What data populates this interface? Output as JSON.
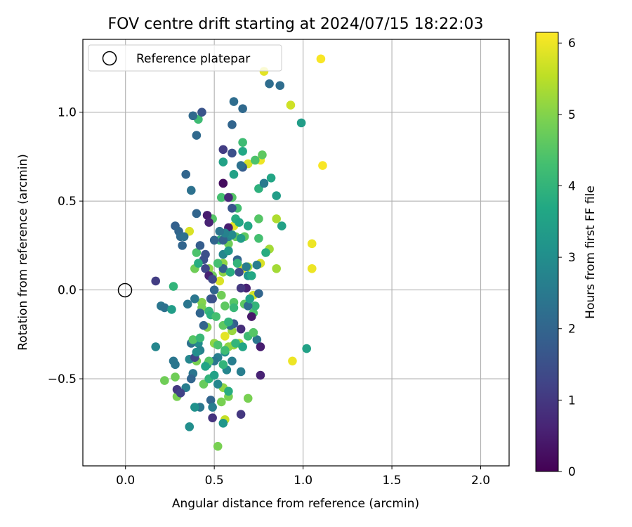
{
  "chart_data": {
    "type": "scatter",
    "title": "FOV centre drift starting at 2024/07/15 18:22:03",
    "xlabel": "Angular distance from reference (arcmin)",
    "ylabel": "Rotation from reference (arcmin)",
    "xlim": [
      -0.24,
      2.16
    ],
    "ylim": [
      -0.99,
      1.41
    ],
    "xticks": [
      0.0,
      0.5,
      1.0,
      1.5,
      2.0
    ],
    "xtick_labels": [
      "0.0",
      "0.5",
      "1.0",
      "1.5",
      "2.0"
    ],
    "yticks": [
      -0.5,
      0.0,
      0.5,
      1.0
    ],
    "ytick_labels": [
      "−0.5",
      "0.0",
      "0.5",
      "1.0"
    ],
    "grid": true,
    "legend": {
      "placement": "top-left",
      "entries": [
        "Reference platepar"
      ]
    },
    "reference_point": {
      "x": 0.0,
      "y": 0.0
    },
    "colorbar": {
      "label": "Hours from first FF file",
      "colormap": "viridis",
      "range": [
        0,
        6.15
      ],
      "ticks": [
        0,
        1,
        2,
        3,
        4,
        5,
        6
      ],
      "tick_labels": [
        "0",
        "1",
        "2",
        "3",
        "4",
        "5",
        "6"
      ]
    },
    "points": [
      [
        1.1,
        1.3,
        6.1
      ],
      [
        0.78,
        1.23,
        5.9
      ],
      [
        0.93,
        1.04,
        5.7
      ],
      [
        1.11,
        0.7,
        6.1
      ],
      [
        0.76,
        0.73,
        6.0
      ],
      [
        0.69,
        0.71,
        5.8
      ],
      [
        1.05,
        0.26,
        6.0
      ],
      [
        1.05,
        0.12,
        6.0
      ],
      [
        0.94,
        -0.4,
        6.0
      ],
      [
        0.61,
        0.36,
        5.9
      ],
      [
        0.66,
        0.12,
        5.9
      ],
      [
        0.53,
        0.05,
        5.8
      ],
      [
        0.56,
        -0.26,
        5.9
      ],
      [
        0.36,
        0.33,
        5.8
      ],
      [
        0.72,
        -0.03,
        5.7
      ],
      [
        0.76,
        0.15,
        5.8
      ],
      [
        0.56,
        -0.73,
        5.6
      ],
      [
        0.85,
        0.4,
        5.4
      ],
      [
        0.81,
        0.23,
        5.3
      ],
      [
        0.85,
        0.12,
        5.3
      ],
      [
        0.69,
        0.13,
        5.3
      ],
      [
        0.64,
        -0.3,
        5.3
      ],
      [
        0.61,
        -0.31,
        5.2
      ],
      [
        0.6,
        -0.23,
        5.2
      ],
      [
        0.58,
        -0.32,
        5.1
      ],
      [
        0.55,
        -0.55,
        5.1
      ],
      [
        0.52,
        -0.88,
        4.9
      ],
      [
        0.54,
        -0.63,
        4.9
      ],
      [
        0.69,
        -0.61,
        4.9
      ],
      [
        0.58,
        -0.6,
        4.9
      ],
      [
        0.4,
        -0.4,
        4.9
      ],
      [
        0.29,
        -0.6,
        4.9
      ],
      [
        0.28,
        -0.49,
        4.8
      ],
      [
        0.22,
        -0.51,
        4.8
      ],
      [
        0.5,
        -0.3,
        5.1
      ],
      [
        0.46,
        -0.21,
        5.0
      ],
      [
        0.43,
        -0.07,
        5.0
      ],
      [
        0.47,
        0.12,
        5.1
      ],
      [
        0.39,
        0.12,
        4.8
      ],
      [
        0.43,
        -0.1,
        4.9
      ],
      [
        0.49,
        0.08,
        4.8
      ],
      [
        0.55,
        0.1,
        5.1
      ],
      [
        0.55,
        0.15,
        5.1
      ],
      [
        0.58,
        0.26,
        4.8
      ],
      [
        0.62,
        0.3,
        4.7
      ],
      [
        0.67,
        0.3,
        4.6
      ],
      [
        0.75,
        0.29,
        4.3
      ],
      [
        0.75,
        0.4,
        4.5
      ],
      [
        0.77,
        0.76,
        4.6
      ],
      [
        0.73,
        0.73,
        4.4
      ],
      [
        0.66,
        0.83,
        4.2
      ],
      [
        0.66,
        0.78,
        3.7
      ],
      [
        0.6,
        0.52,
        4.5
      ],
      [
        0.63,
        0.46,
        4.3
      ],
      [
        0.54,
        0.52,
        4.3
      ],
      [
        0.56,
        0.29,
        4.2
      ],
      [
        0.53,
        0.28,
        4.0
      ],
      [
        0.49,
        0.4,
        4.5
      ],
      [
        0.4,
        0.21,
        4.4
      ],
      [
        0.41,
        0.96,
        4.2
      ],
      [
        0.54,
        -0.03,
        4.8
      ],
      [
        0.56,
        -0.09,
        4.6
      ],
      [
        0.61,
        -0.07,
        4.5
      ],
      [
        0.67,
        -0.08,
        4.6
      ],
      [
        0.72,
        -0.13,
        4.4
      ],
      [
        0.73,
        -0.09,
        4.0
      ],
      [
        0.72,
        -0.24,
        4.1
      ],
      [
        0.79,
        0.21,
        3.8
      ],
      [
        0.75,
        0.57,
        3.9
      ],
      [
        0.82,
        0.63,
        3.6
      ],
      [
        0.85,
        0.53,
        3.4
      ],
      [
        0.88,
        0.36,
        3.5
      ],
      [
        0.99,
        0.94,
        3.4
      ],
      [
        1.02,
        -0.33,
        3.5
      ],
      [
        0.78,
        0.6,
        2.5
      ],
      [
        0.81,
        1.16,
        2.2
      ],
      [
        0.87,
        1.15,
        2.2
      ],
      [
        0.61,
        1.06,
        2.2
      ],
      [
        0.66,
        1.02,
        2.1
      ],
      [
        0.6,
        0.93,
        2.0
      ],
      [
        0.43,
        1.0,
        1.6
      ],
      [
        0.38,
        0.98,
        2.1
      ],
      [
        0.4,
        0.87,
        2.1
      ],
      [
        0.34,
        0.65,
        2.0
      ],
      [
        0.37,
        0.56,
        2.3
      ],
      [
        0.4,
        0.43,
        2.0
      ],
      [
        0.28,
        0.36,
        1.9
      ],
      [
        0.3,
        0.33,
        2.0
      ],
      [
        0.31,
        0.3,
        2.1
      ],
      [
        0.33,
        0.3,
        2.3
      ],
      [
        0.32,
        0.25,
        2.0
      ],
      [
        0.42,
        0.25,
        1.8
      ],
      [
        0.55,
        0.79,
        1.1
      ],
      [
        0.6,
        0.77,
        1.5
      ],
      [
        0.66,
        0.69,
        1.8
      ],
      [
        0.65,
        0.7,
        2.3
      ],
      [
        0.61,
        0.65,
        3.5
      ],
      [
        0.55,
        0.72,
        3.5
      ],
      [
        0.55,
        0.6,
        0.2
      ],
      [
        0.58,
        0.52,
        0.7
      ],
      [
        0.6,
        0.46,
        1.6
      ],
      [
        0.58,
        0.35,
        0.5
      ],
      [
        0.58,
        0.3,
        2.7
      ],
      [
        0.55,
        0.28,
        1.9
      ],
      [
        0.46,
        0.42,
        0.5
      ],
      [
        0.47,
        0.38,
        0.6
      ],
      [
        0.44,
        0.17,
        1.5
      ],
      [
        0.45,
        0.12,
        1.3
      ],
      [
        0.47,
        0.08,
        0.6
      ],
      [
        0.49,
        0.06,
        1.3
      ],
      [
        0.55,
        0.2,
        2.8
      ],
      [
        0.55,
        0.12,
        1.9
      ],
      [
        0.63,
        0.17,
        2.0
      ],
      [
        0.64,
        0.1,
        1.4
      ],
      [
        0.68,
        0.13,
        2.6
      ],
      [
        0.69,
        0.08,
        3.2
      ],
      [
        0.74,
        0.14,
        2.6
      ],
      [
        0.68,
        0.01,
        0.6
      ],
      [
        0.65,
        0.01,
        1.0
      ],
      [
        0.71,
        -0.15,
        0.4
      ],
      [
        0.75,
        -0.02,
        2.0
      ],
      [
        0.69,
        -0.09,
        2.2
      ],
      [
        0.17,
        0.05,
        1.1
      ],
      [
        0.2,
        -0.09,
        2.4
      ],
      [
        0.22,
        -0.1,
        2.3
      ],
      [
        0.26,
        -0.11,
        3.4
      ],
      [
        0.27,
        0.02,
        4.0
      ],
      [
        0.35,
        -0.08,
        2.4
      ],
      [
        0.39,
        -0.05,
        2.4
      ],
      [
        0.42,
        -0.13,
        2.0
      ],
      [
        0.44,
        -0.2,
        2.0
      ],
      [
        0.48,
        -0.05,
        1.8
      ],
      [
        0.5,
        0.0,
        2.0
      ],
      [
        0.49,
        -0.05,
        1.5
      ],
      [
        0.61,
        -0.19,
        1.8
      ],
      [
        0.65,
        -0.22,
        0.8
      ],
      [
        0.59,
        -0.2,
        2.2
      ],
      [
        0.74,
        -0.28,
        2.4
      ],
      [
        0.76,
        -0.32,
        0.5
      ],
      [
        0.76,
        -0.48,
        0.6
      ],
      [
        0.65,
        -0.46,
        2.6
      ],
      [
        0.6,
        -0.4,
        2.6
      ],
      [
        0.57,
        -0.45,
        2.8
      ],
      [
        0.56,
        -0.35,
        3.0
      ],
      [
        0.52,
        -0.38,
        2.6
      ],
      [
        0.5,
        -0.4,
        2.4
      ],
      [
        0.46,
        -0.42,
        3.5
      ],
      [
        0.41,
        -0.3,
        3.0
      ],
      [
        0.42,
        -0.34,
        2.7
      ],
      [
        0.37,
        -0.3,
        2.3
      ],
      [
        0.36,
        -0.39,
        2.8
      ],
      [
        0.38,
        -0.47,
        2.4
      ],
      [
        0.37,
        -0.5,
        2.0
      ],
      [
        0.34,
        -0.55,
        2.6
      ],
      [
        0.28,
        -0.42,
        2.4
      ],
      [
        0.27,
        -0.4,
        2.4
      ],
      [
        0.17,
        -0.32,
        2.8
      ],
      [
        0.48,
        -0.62,
        2.0
      ],
      [
        0.49,
        -0.66,
        2.6
      ],
      [
        0.42,
        -0.66,
        2.4
      ],
      [
        0.39,
        -0.66,
        3.1
      ],
      [
        0.36,
        -0.77,
        3.0
      ],
      [
        0.49,
        -0.72,
        0.9
      ],
      [
        0.52,
        -0.53,
        2.8
      ],
      [
        0.55,
        -0.75,
        3.2
      ],
      [
        0.29,
        -0.56,
        1.0
      ],
      [
        0.65,
        -0.7,
        1.0
      ],
      [
        0.31,
        -0.58,
        1.2
      ],
      [
        0.39,
        -0.38,
        1.3
      ],
      [
        0.44,
        -0.53,
        4.7
      ],
      [
        0.47,
        -0.5,
        4.0
      ],
      [
        0.5,
        -0.48,
        3.5
      ],
      [
        0.58,
        -0.57,
        3.8
      ],
      [
        0.55,
        -0.42,
        4.0
      ],
      [
        0.47,
        -0.4,
        4.5
      ],
      [
        0.45,
        -0.43,
        3.6
      ],
      [
        0.4,
        -0.35,
        3.0
      ],
      [
        0.38,
        -0.28,
        4.5
      ],
      [
        0.42,
        -0.27,
        4.1
      ],
      [
        0.52,
        -0.31,
        4.4
      ],
      [
        0.56,
        -0.34,
        4.2
      ],
      [
        0.62,
        -0.3,
        4.0
      ],
      [
        0.66,
        -0.32,
        3.6
      ],
      [
        0.69,
        -0.26,
        4.2
      ],
      [
        0.72,
        -0.24,
        4.5
      ],
      [
        0.55,
        -0.2,
        4.6
      ],
      [
        0.58,
        -0.18,
        4.0
      ],
      [
        0.47,
        -0.12,
        4.1
      ],
      [
        0.48,
        -0.14,
        3.9
      ],
      [
        0.51,
        -0.15,
        4.3
      ],
      [
        0.61,
        -0.1,
        4.1
      ],
      [
        0.7,
        -0.05,
        3.5
      ],
      [
        0.71,
        0.08,
        3.7
      ],
      [
        0.63,
        0.15,
        4.0
      ],
      [
        0.59,
        0.1,
        3.8
      ],
      [
        0.52,
        0.15,
        4.3
      ],
      [
        0.41,
        0.15,
        3.8
      ],
      [
        0.62,
        0.4,
        3.8
      ],
      [
        0.64,
        0.38,
        3.6
      ],
      [
        0.69,
        0.36,
        3.6
      ],
      [
        0.65,
        0.29,
        3.4
      ],
      [
        0.58,
        0.22,
        3.2
      ],
      [
        0.6,
        0.31,
        2.9
      ],
      [
        0.56,
        0.32,
        2.7
      ],
      [
        0.53,
        0.33,
        2.4
      ],
      [
        0.5,
        0.28,
        2.0
      ],
      [
        0.45,
        0.2,
        1.5
      ]
    ]
  }
}
